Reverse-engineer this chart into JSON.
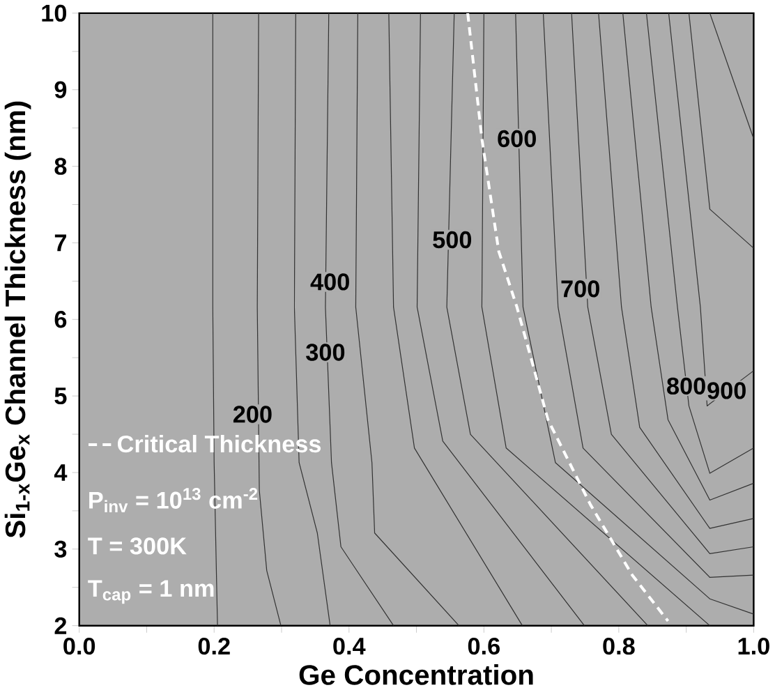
{
  "chart_data": {
    "type": "line",
    "xlabel": "Ge Concentration",
    "ylabel": "Si$_{1-x}$Ge$_{x}$ Channel Thickness (nm)",
    "xlim": [
      0,
      1
    ],
    "ylim": [
      2,
      10
    ],
    "xticks": [
      {
        "value": 0,
        "label": "0.0"
      },
      {
        "value": 0.1,
        "label": null
      },
      {
        "value": 0.2,
        "label": "0.2"
      },
      {
        "value": 0.3,
        "label": null
      },
      {
        "value": 0.4,
        "label": "0.4"
      },
      {
        "value": 0.5,
        "label": null
      },
      {
        "value": 0.6,
        "label": "0.6"
      },
      {
        "value": 0.7,
        "label": null
      },
      {
        "value": 0.8,
        "label": "0.8"
      },
      {
        "value": 0.9,
        "label": null
      },
      {
        "value": 1,
        "label": "1.0"
      }
    ],
    "yticks": [
      2,
      {
        "value": 2.5,
        "label": null
      },
      3,
      {
        "value": 3.5,
        "label": null
      },
      4,
      {
        "value": 4.5,
        "label": null
      },
      5,
      {
        "value": 5.5,
        "label": null
      },
      6,
      {
        "value": 6.5,
        "label": null
      },
      7,
      {
        "value": 7.5,
        "label": null
      },
      8,
      {
        "value": 8.5,
        "label": null
      },
      9,
      {
        "value": 9.5,
        "label": null
      },
      10
    ],
    "grid": false,
    "legend": "bottom left",
    "marker": "none",
    "line_style": "solid",
    "series": [
      {
        "color": "#333333",
        "x": [
          0.198,
          0.198,
          0.2,
          0.205
        ],
        "values": [
          10,
          6.16,
          4.13,
          2
        ]
      },
      {
        "color": "#333333",
        "x": [
          0.266,
          0.264,
          0.267,
          0.278,
          0.299
        ],
        "values": [
          10,
          6.16,
          3.77,
          2.72,
          2
        ]
      },
      {
        "color": "#333333",
        "x": [
          0.321,
          0.319,
          0.326,
          0.353,
          0.372
        ],
        "values": [
          10,
          6.16,
          4.13,
          3.21,
          2
        ]
      },
      {
        "color": "#333333",
        "x": [
          0.37,
          0.365,
          0.374,
          0.388,
          0.466
        ],
        "values": [
          10,
          6.16,
          4.13,
          3.03,
          2
        ]
      },
      {
        "color": "#333333",
        "x": [
          0.413,
          0.41,
          0.434,
          0.438,
          0.563
        ],
        "values": [
          10,
          6.16,
          4.13,
          3.21,
          2
        ]
      },
      {
        "color": "#333333",
        "x": [
          0.459,
          0.466,
          0.497,
          0.657
        ],
        "values": [
          10,
          6.16,
          4.32,
          2
        ]
      },
      {
        "color": "#333333",
        "x": [
          0.506,
          0.501,
          0.539,
          0.749
        ],
        "values": [
          10,
          6.16,
          4.41,
          2
        ]
      },
      {
        "color": "#333333",
        "x": [
          0.556,
          0.545,
          0.58,
          0.843
        ],
        "values": [
          10,
          6.16,
          4.5,
          2
        ]
      },
      {
        "color": "#333333",
        "x": [
          0.6,
          0.597,
          0.633,
          0.935
        ],
        "values": [
          10,
          6.16,
          4.32,
          2
        ]
      },
      {
        "color": "#333333",
        "x": [
          0.647,
          0.658,
          0.706,
          0.935,
          1.0
        ],
        "values": [
          10,
          6.16,
          4.13,
          2.35,
          2.15
        ]
      },
      {
        "color": "#333333",
        "x": [
          0.688,
          0.71,
          0.747,
          0.935,
          1.0
        ],
        "values": [
          10,
          6.16,
          4.32,
          2.63,
          2.66
        ]
      },
      {
        "color": "#333333",
        "x": [
          0.73,
          0.754,
          0.789,
          0.935,
          1.0
        ],
        "values": [
          10,
          6.16,
          4.5,
          2.94,
          3.03
        ]
      },
      {
        "color": "#333333",
        "x": [
          0.77,
          0.804,
          0.831,
          0.935,
          1.0
        ],
        "values": [
          10,
          6.16,
          4.59,
          3.27,
          3.4
        ]
      },
      {
        "color": "#333333",
        "x": [
          0.806,
          0.848,
          0.873,
          0.935,
          1.0
        ],
        "values": [
          10,
          6.16,
          4.69,
          3.64,
          3.86
        ]
      },
      {
        "color": "#333333",
        "x": [
          0.841,
          0.887,
          0.904,
          0.935,
          1.0
        ],
        "values": [
          10,
          6.16,
          4.87,
          3.99,
          4.32
        ]
      },
      {
        "color": "#333333",
        "x": [
          0.874,
          0.921,
          0.931,
          1.0
        ],
        "values": [
          10,
          6.16,
          4.87,
          5.33
        ]
      },
      {
        "color": "#333333",
        "x": [
          0.904,
          0.935,
          1.0
        ],
        "values": [
          10,
          7.44,
          6.93
        ]
      },
      {
        "color": "#333333",
        "x": [
          0.935,
          1.0
        ],
        "values": [
          10,
          8.36
        ]
      },
      {
        "name": "Critical Thickness",
        "color": "#ffffff",
        "line_style": "dashed",
        "x": [
          0.576,
          0.597,
          0.622,
          0.649,
          0.695,
          0.758,
          0.82,
          0.873
        ],
        "values": [
          10,
          8.36,
          6.89,
          6.16,
          4.69,
          3.58,
          2.66,
          2.06
        ]
      }
    ],
    "annotations": [
      {
        "text": "200",
        "x": 0.257,
        "y": 4.76
      },
      {
        "text": "300",
        "x": 0.365,
        "y": 5.57
      },
      {
        "text": "400",
        "x": 0.372,
        "y": 6.49
      },
      {
        "text": "500",
        "x": 0.553,
        "y": 7.04
      },
      {
        "text": "600",
        "x": 0.649,
        "y": 8.36
      },
      {
        "text": "700",
        "x": 0.743,
        "y": 6.4
      },
      {
        "text": "800",
        "x": 0.9,
        "y": 5.13
      },
      {
        "text": "900",
        "x": 0.96,
        "y": 5.07
      },
      "P$_{inv}$ = 10$^{13}$ cm$^{-2}$",
      "T = 300K",
      "T$_{cap}$ = 1 nm"
    ]
  }
}
